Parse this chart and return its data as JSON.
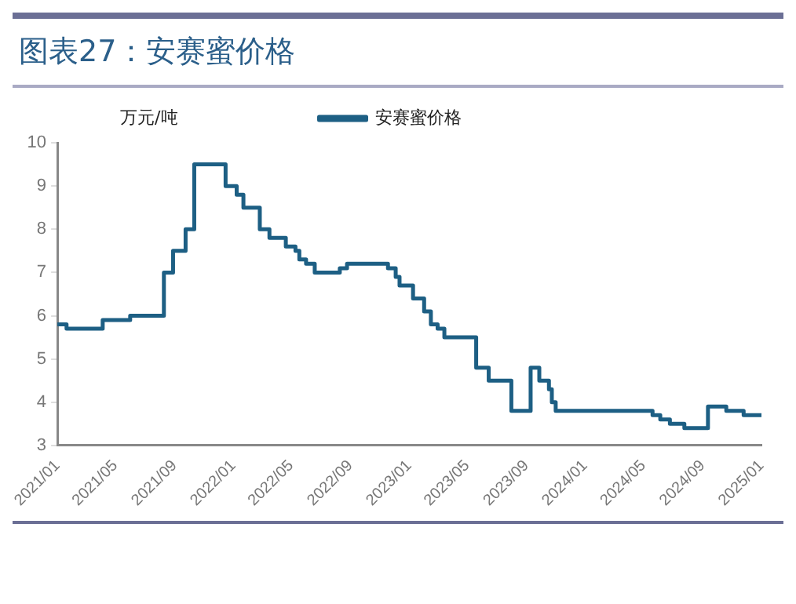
{
  "chart_data": {
    "type": "step",
    "title": "图表27：安赛蜜价格",
    "ylabel": "万元/吨",
    "legend": "top",
    "grid": false,
    "marker": "none",
    "series": [
      {
        "name": "安赛蜜价格",
        "color": "#1d5f84",
        "x": [
          "2021-01-01",
          "2021-01-20",
          "2021-04-05",
          "2021-06-01",
          "2021-08-10",
          "2021-08-29",
          "2021-09-24",
          "2021-10-12",
          "2021-12-16",
          "2022-01-08",
          "2022-01-22",
          "2022-02-25",
          "2022-03-17",
          "2022-04-20",
          "2022-05-10",
          "2022-05-18",
          "2022-06-01",
          "2022-06-19",
          "2022-08-10",
          "2022-08-25",
          "2022-11-18",
          "2022-12-04",
          "2022-12-12",
          "2023-01-09",
          "2023-02-01",
          "2023-02-15",
          "2023-03-01",
          "2023-03-15",
          "2023-05-20",
          "2023-06-15",
          "2023-08-01",
          "2023-09-10",
          "2023-09-28",
          "2023-10-18",
          "2023-10-24",
          "2023-11-01",
          "2024-05-20",
          "2024-06-05",
          "2024-06-25",
          "2024-07-25",
          "2024-09-12",
          "2024-10-20",
          "2024-11-25",
          "2025-01-01"
        ],
        "values": [
          5.8,
          5.7,
          5.9,
          6.0,
          7.0,
          7.5,
          8.0,
          9.5,
          9.0,
          8.8,
          8.5,
          8.0,
          7.8,
          7.6,
          7.5,
          7.3,
          7.2,
          7.0,
          7.1,
          7.2,
          7.1,
          6.9,
          6.7,
          6.4,
          6.1,
          5.8,
          5.7,
          5.5,
          4.8,
          4.5,
          3.8,
          4.8,
          4.5,
          4.3,
          4.0,
          3.8,
          3.7,
          3.6,
          3.5,
          3.4,
          3.9,
          3.8,
          3.7,
          3.7
        ]
      }
    ],
    "xlim": [
      "2021-01-01",
      "2025-01-01"
    ],
    "xticks": [
      {
        "value": "2021-01-01",
        "label": "2021/01"
      },
      {
        "value": "2021-05-01",
        "label": "2021/05"
      },
      {
        "value": "2021-09-01",
        "label": "2021/09"
      },
      {
        "value": "2022-01-01",
        "label": "2022/01"
      },
      {
        "value": "2022-05-01",
        "label": "2022/05"
      },
      {
        "value": "2022-09-01",
        "label": "2022/09"
      },
      {
        "value": "2023-01-01",
        "label": "2023/01"
      },
      {
        "value": "2023-05-01",
        "label": "2023/05"
      },
      {
        "value": "2023-09-01",
        "label": "2023/09"
      },
      {
        "value": "2024-01-01",
        "label": "2024/01"
      },
      {
        "value": "2024-05-01",
        "label": "2024/05"
      },
      {
        "value": "2024-09-01",
        "label": "2024/09"
      },
      {
        "value": "2025-01-01",
        "label": "2025/01"
      }
    ],
    "ylim": [
      3,
      10
    ],
    "yticks": [
      3,
      4,
      5,
      6,
      7,
      8,
      9,
      10
    ]
  }
}
